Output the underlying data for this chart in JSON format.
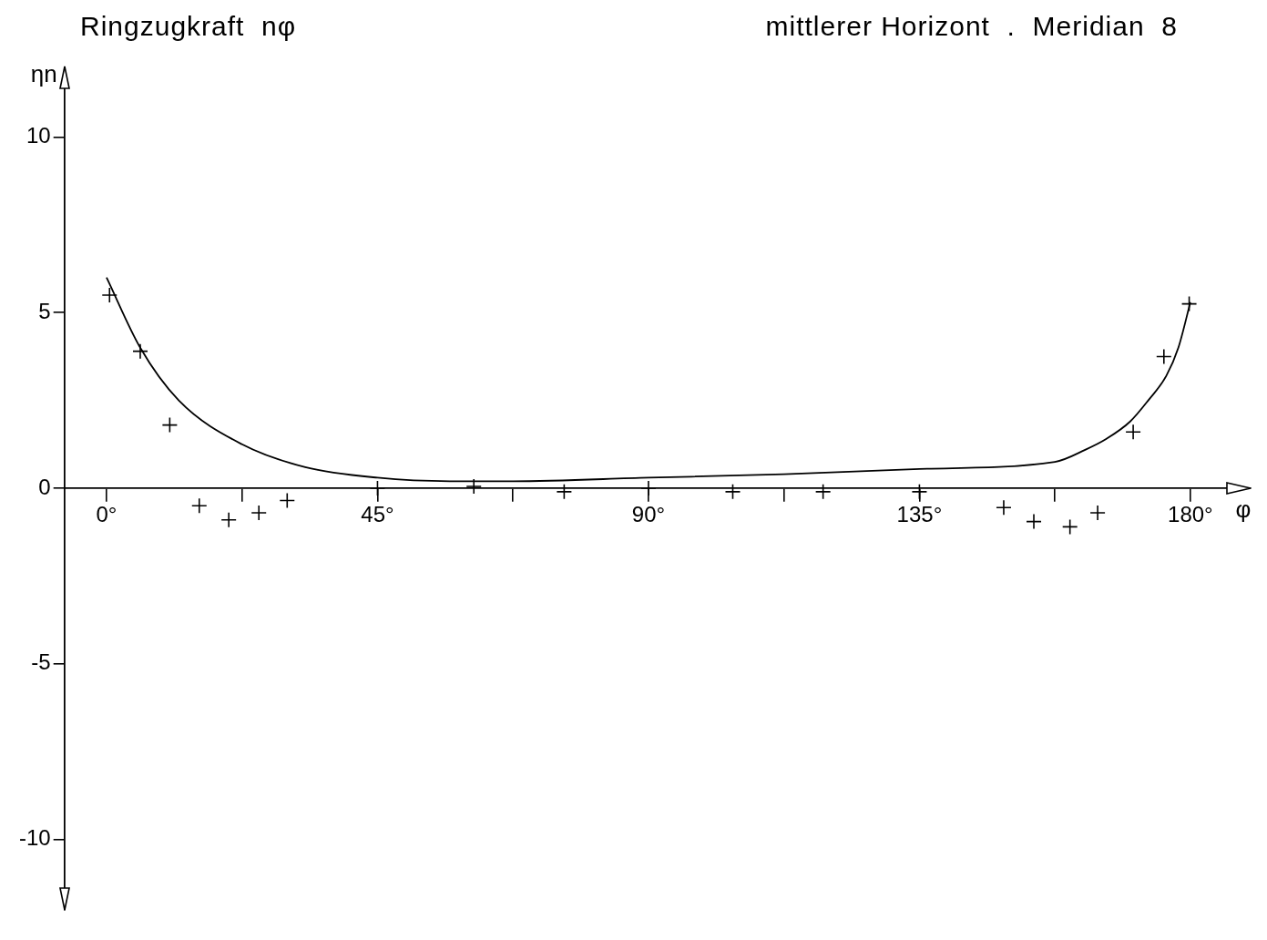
{
  "chart_data": {
    "type": "scatter",
    "title": "Ringzugkraft  nφ",
    "subtitle": "mittlerer Horizont  .  Meridian  8",
    "xlabel": "φ",
    "ylabel": "ηn",
    "xlim": [
      -7,
      190
    ],
    "ylim": [
      -12,
      12
    ],
    "xticks": [
      {
        "value": 0,
        "label": "0°"
      },
      {
        "value": 22.5,
        "label": null
      },
      {
        "value": 45,
        "label": "45°"
      },
      {
        "value": 67.5,
        "label": null
      },
      {
        "value": 90,
        "label": "90°"
      },
      {
        "value": 112.5,
        "label": null
      },
      {
        "value": 135,
        "label": "135°"
      },
      {
        "value": 157.5,
        "label": null
      },
      {
        "value": 180,
        "label": "180°"
      }
    ],
    "yticks": [
      -10,
      -5,
      0,
      5,
      10
    ],
    "grid": false,
    "legend": false,
    "marker": "cross",
    "series": [
      {
        "color": "#000000",
        "x": [
          0.5,
          5.6,
          10.5,
          15.4,
          20.3,
          25.3,
          30,
          45,
          61,
          76,
          90,
          104,
          119,
          135,
          149,
          154,
          160,
          164.6,
          170.5,
          175.6,
          179.8
        ],
        "values": [
          5.5,
          3.9,
          1.8,
          -0.5,
          -0.9,
          -0.7,
          -0.35,
          0,
          0.05,
          -0.1,
          0,
          -0.1,
          -0.1,
          -0.1,
          -0.55,
          -0.95,
          -1.1,
          -0.7,
          1.6,
          3.75,
          5.25
        ]
      },
      {
        "type": "line",
        "color": "#000000",
        "marker": "none",
        "x": [
          0,
          5.6,
          12,
          22.5,
          33,
          45,
          57,
          67.5,
          90,
          112.5,
          135,
          157.5,
          162.6,
          166,
          170,
          173,
          176,
          178,
          180
        ],
        "values": [
          6.0,
          4.0,
          2.5,
          1.25,
          0.6,
          0.3,
          0.2,
          0.2,
          0.3,
          0.4,
          0.55,
          0.75,
          1.1,
          1.4,
          1.9,
          2.5,
          3.2,
          4.0,
          5.3
        ]
      }
    ]
  }
}
